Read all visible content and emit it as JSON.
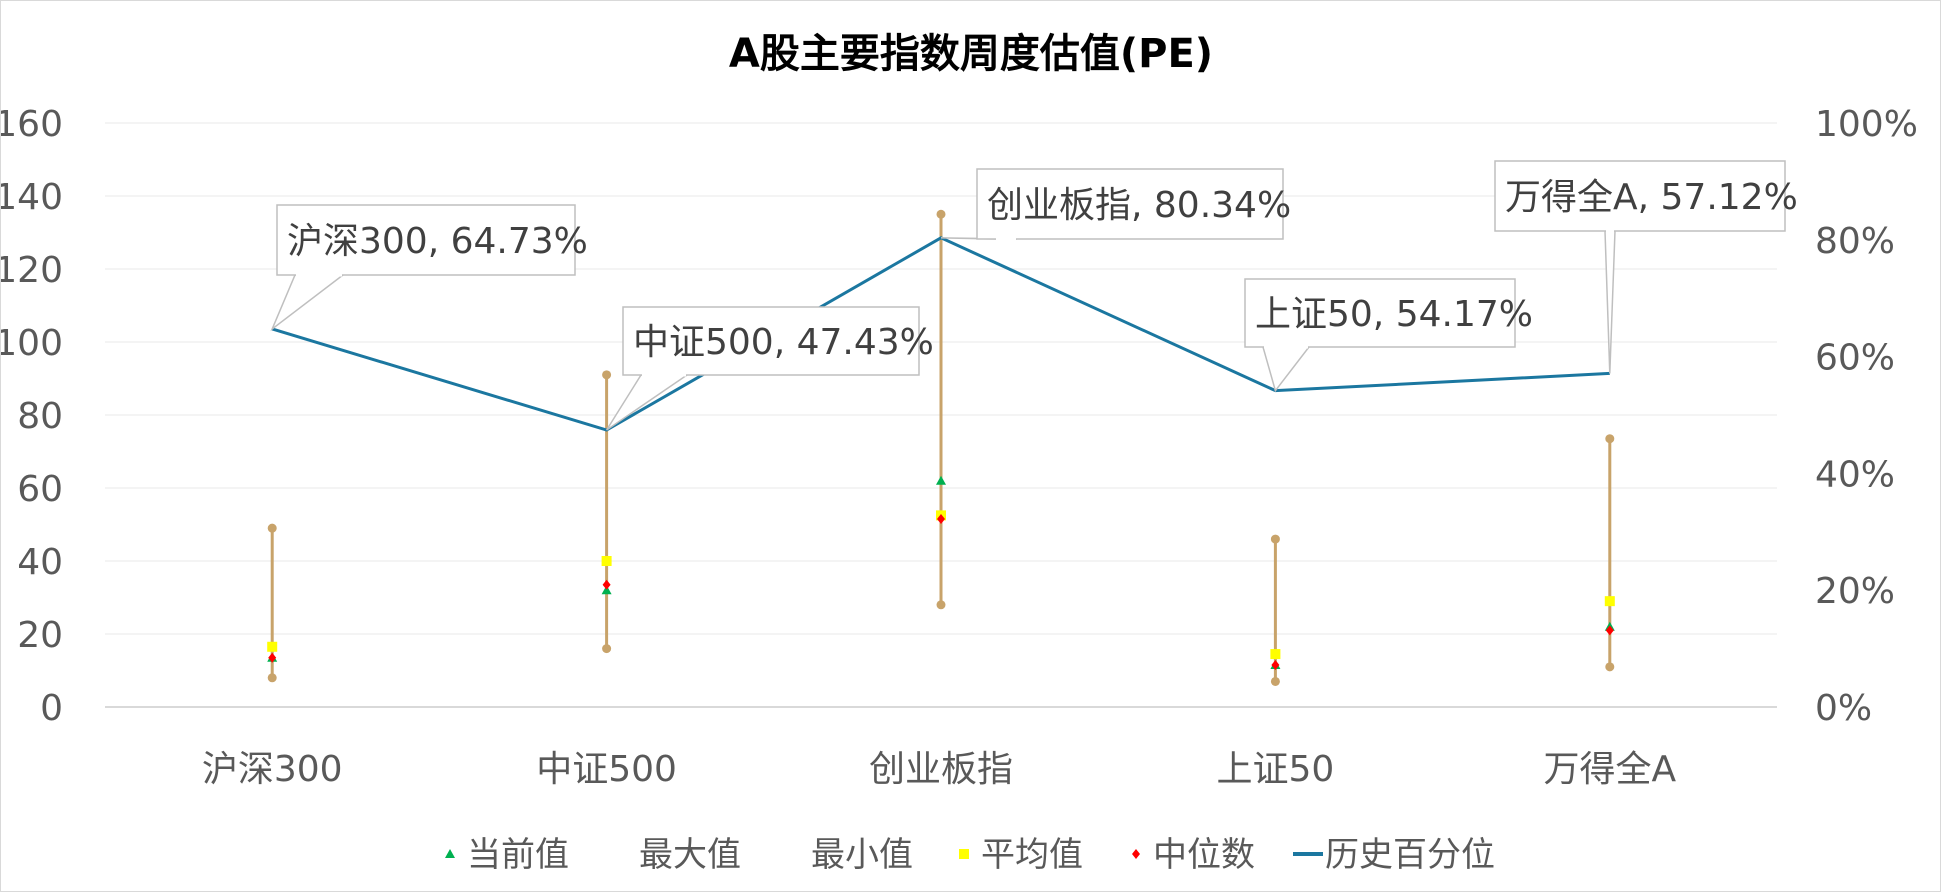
{
  "chart_data": {
    "type": "line",
    "title": "A股主要指数周度估值(PE)",
    "categories": [
      "沪深300",
      "中证500",
      "创业板指",
      "上证50",
      "万得全A"
    ],
    "y_left": {
      "ylim": [
        0,
        160
      ],
      "ticks": [
        0,
        20,
        40,
        60,
        80,
        100,
        120,
        140,
        160
      ]
    },
    "y_right": {
      "ylim": [
        0,
        1
      ],
      "ticks": [
        "0%",
        "20%",
        "40%",
        "60%",
        "80%",
        "100%"
      ]
    },
    "series": [
      {
        "name": "当前值",
        "axis": "left",
        "marker": "triangle",
        "color": "#00b050",
        "values": [
          13.5,
          32.0,
          62.0,
          11.5,
          22.0
        ]
      },
      {
        "name": "最大值",
        "axis": "left",
        "marker": "circle",
        "color": "#c8a36a",
        "values": [
          49.0,
          91.0,
          135.0,
          46.0,
          73.5
        ]
      },
      {
        "name": "最小值",
        "axis": "left",
        "marker": "circle",
        "color": "#c8a36a",
        "values": [
          8.0,
          16.0,
          28.0,
          7.0,
          11.0
        ]
      },
      {
        "name": "平均值",
        "axis": "left",
        "marker": "square",
        "color": "#ffff00",
        "values": [
          16.5,
          40.0,
          52.5,
          14.5,
          29.0
        ]
      },
      {
        "name": "中位数",
        "axis": "left",
        "marker": "diamond",
        "color": "#ff0000",
        "values": [
          13.5,
          33.5,
          51.5,
          11.5,
          21.0
        ]
      },
      {
        "name": "历史百分位",
        "axis": "right",
        "marker": "line",
        "color": "#1b77a0",
        "values": [
          0.6473,
          0.4743,
          0.8034,
          0.5417,
          0.5712
        ]
      }
    ],
    "range_bar_color": "#c8a36a",
    "callouts": [
      "沪深300, 64.73%",
      "中证500, 47.43%",
      "创业板指, 80.34%",
      "上证50, 54.17%",
      "万得全A, 57.12%"
    ],
    "legend_placement": "bottom",
    "grid": true
  }
}
